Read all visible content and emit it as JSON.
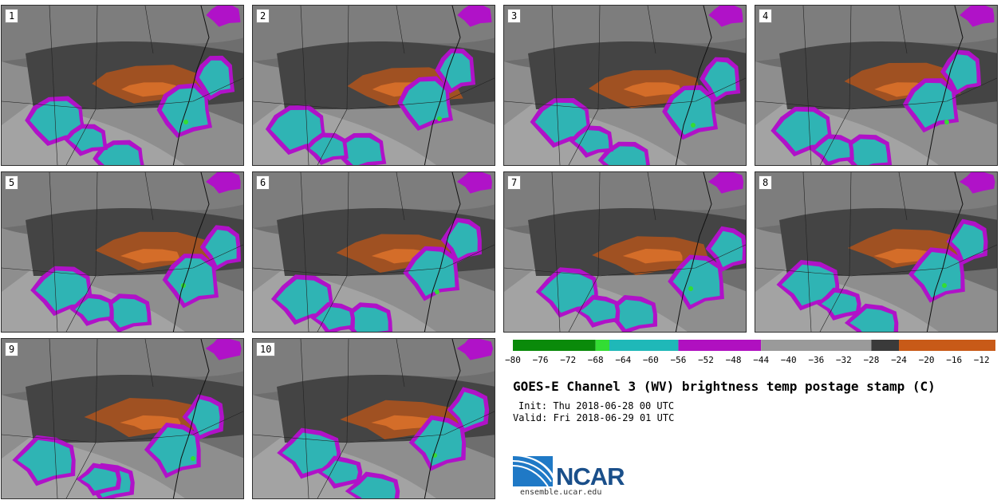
{
  "panels": [
    {
      "label": "1"
    },
    {
      "label": "2"
    },
    {
      "label": "3"
    },
    {
      "label": "4"
    },
    {
      "label": "5"
    },
    {
      "label": "6"
    },
    {
      "label": "7"
    },
    {
      "label": "8"
    },
    {
      "label": "9"
    },
    {
      "label": "10"
    }
  ],
  "colorbar": {
    "ticks": [
      "-80",
      "-76",
      "-72",
      "-68",
      "-64",
      "-60",
      "-56",
      "-52",
      "-48",
      "-44",
      "-40",
      "-36",
      "-32",
      "-28",
      "-24",
      "-20",
      "-16",
      "-12"
    ],
    "min": -80,
    "max": -10,
    "bands": [
      {
        "from": -80,
        "to": -68,
        "color": "#0a8a0a"
      },
      {
        "from": -68,
        "to": -66,
        "color": "#33dd33"
      },
      {
        "from": -66,
        "to": -56,
        "color": "#1fb8b8"
      },
      {
        "from": -56,
        "to": -44,
        "color": "#b010c0"
      },
      {
        "from": -44,
        "to": -28,
        "color": "#9a9a9a"
      },
      {
        "from": -28,
        "to": -24,
        "color": "#3a3a3a"
      },
      {
        "from": -24,
        "to": -10,
        "color": "#c85a18"
      }
    ]
  },
  "title": "GOES-E Channel 3 (WV) brightness temp postage stamp (C)",
  "init_text": "Init: Thu 2018-06-28 00 UTC",
  "valid_text": "Valid: Fri 2018-06-29 01 UTC",
  "logo": {
    "text": "NCAR",
    "url": "ensemble.ucar.edu"
  },
  "colors": {
    "dry": "#a8521f",
    "dryCore": "#d9702a",
    "cold": "#2fb4b4",
    "coldEdge": "#b012c8",
    "coldest": "#33dd33"
  }
}
